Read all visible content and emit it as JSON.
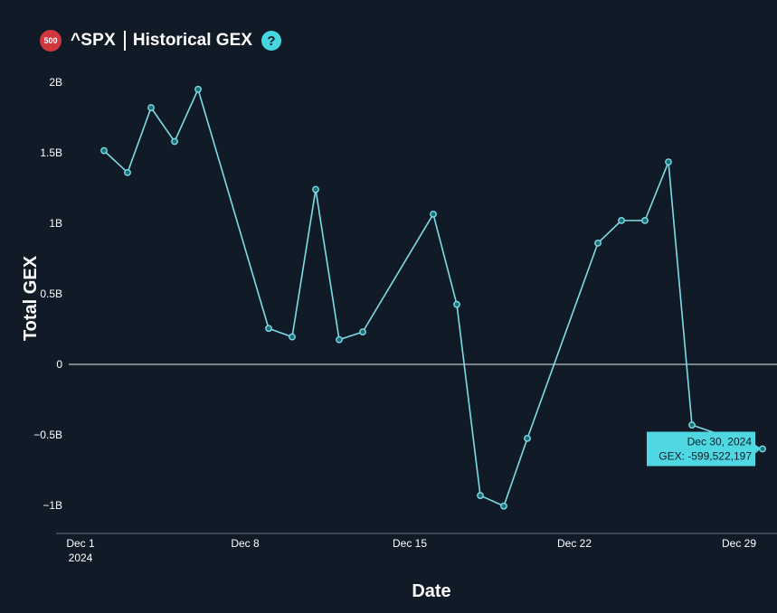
{
  "header": {
    "badge": "500",
    "ticker": "^SPX",
    "title": "Historical GEX",
    "help": "?"
  },
  "colors": {
    "background": "#111b27",
    "line": "#7ddde6",
    "marker_fill": "#1c6f78",
    "badge": "#d0373f",
    "help": "#46d6e0",
    "tooltip": "#4fd8e2"
  },
  "chart_data": {
    "type": "line",
    "xlabel": "Date",
    "ylabel": "Total GEX",
    "ylim": [
      -1.2,
      2.1
    ],
    "y_ticks": [
      {
        "value": 2,
        "label": "2B"
      },
      {
        "value": 1.5,
        "label": "1.5B"
      },
      {
        "value": 1,
        "label": "1B"
      },
      {
        "value": 0.5,
        "label": "0.5B"
      },
      {
        "value": 0,
        "label": "0"
      },
      {
        "value": -0.5,
        "label": "−0.5B"
      },
      {
        "value": -1,
        "label": "−1B"
      }
    ],
    "x_ticks": [
      {
        "day": 1,
        "label": "Dec 1",
        "sublabel": "2024"
      },
      {
        "day": 8,
        "label": "Dec 8",
        "sublabel": ""
      },
      {
        "day": 15,
        "label": "Dec 15",
        "sublabel": ""
      },
      {
        "day": 22,
        "label": "Dec 22",
        "sublabel": ""
      },
      {
        "day": 29,
        "label": "Dec 29",
        "sublabel": ""
      }
    ],
    "grid": false,
    "zero_line": true,
    "series": [
      {
        "x": [
          2,
          3,
          4,
          5,
          6,
          9,
          10,
          11,
          12,
          13,
          16,
          17,
          18,
          19,
          20,
          23,
          24,
          25,
          26,
          27,
          30
        ],
        "y": [
          1.515,
          1.36,
          1.82,
          1.58,
          1.95,
          0.255,
          0.195,
          1.24,
          0.175,
          0.23,
          1.065,
          0.425,
          -0.93,
          -1.005,
          -0.525,
          0.86,
          1.02,
          1.02,
          1.435,
          -0.43,
          -0.5995
        ]
      }
    ],
    "tooltip": {
      "date": "Dec 30, 2024",
      "value": "GEX: -599,522,197",
      "point_index": 20
    }
  }
}
